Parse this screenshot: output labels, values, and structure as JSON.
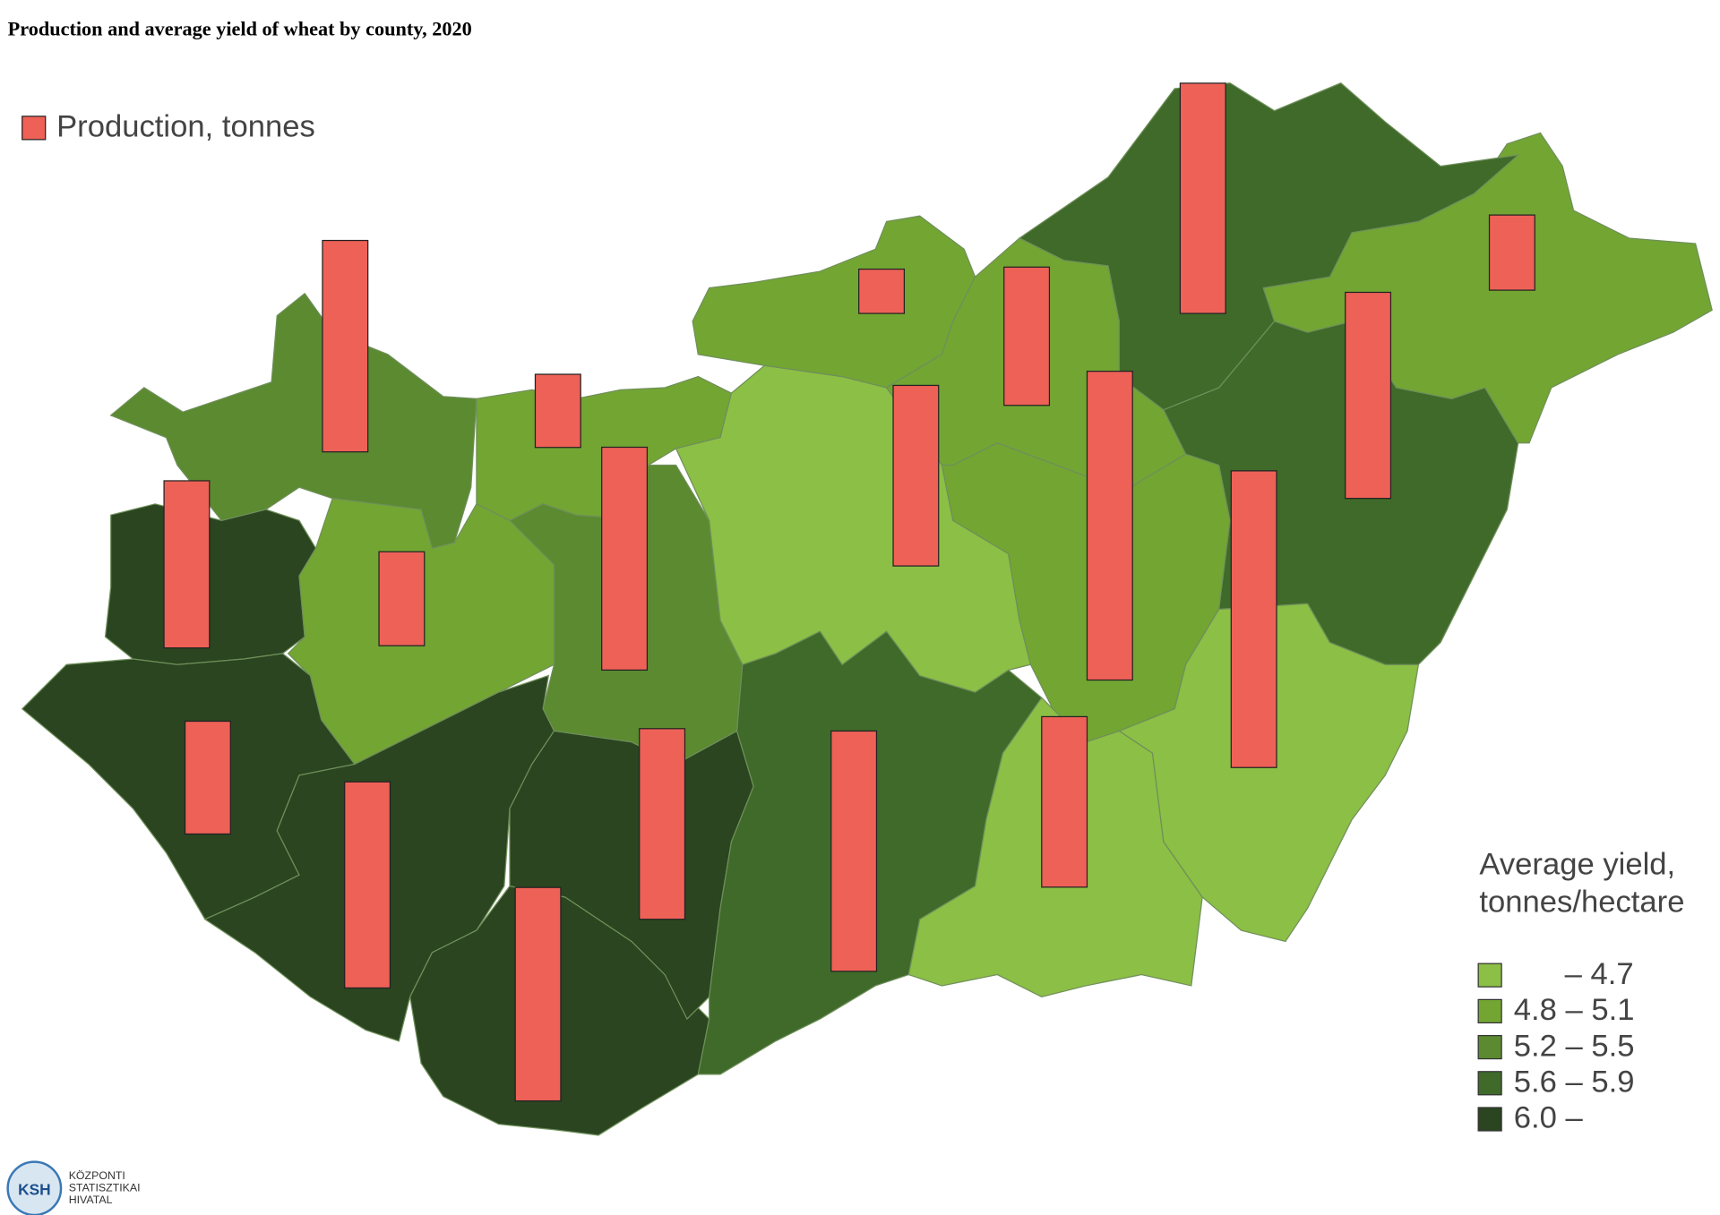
{
  "title": "Production and average yield of wheat by county, 2020",
  "legend": {
    "production_label": "Production, tonnes",
    "yield_title": [
      "Average yield,",
      "tonnes/hectare"
    ],
    "classes": [
      {
        "label": "– 4.7",
        "color": "#8cbf45"
      },
      {
        "label": "4.8 – 5.1",
        "color": "#73a533"
      },
      {
        "label": "5.2 – 5.5",
        "color": "#5b8a30"
      },
      {
        "label": "5.6 – 5.9",
        "color": "#3f6a2a"
      },
      {
        "label": "6.0 –",
        "color": "#2a4520"
      }
    ]
  },
  "bar_color": "#ee6157",
  "counties": [
    {
      "class": 2,
      "production": 315000
    },
    {
      "class": 1,
      "production": 109000
    },
    {
      "class": 4,
      "production": 249000
    },
    {
      "class": 1,
      "production": 140000
    },
    {
      "class": 2,
      "production": 332000
    },
    {
      "class": 4,
      "production": 168000
    },
    {
      "class": 4,
      "production": 307000
    },
    {
      "class": 4,
      "production": 318000
    },
    {
      "class": 4,
      "production": 284000
    },
    {
      "class": 3,
      "production": 358000
    },
    {
      "class": 0,
      "production": 269000
    },
    {
      "class": 1,
      "production": 66000
    },
    {
      "class": 1,
      "production": 206000
    },
    {
      "class": 1,
      "production": 460000
    },
    {
      "class": 0,
      "production": 254000
    },
    {
      "class": 0,
      "production": 442000
    },
    {
      "class": 3,
      "production": 307000
    },
    {
      "class": 1,
      "production": 112000
    },
    {
      "class": 3,
      "production": 343000
    }
  ],
  "logo": {
    "mark": "KSH",
    "lines": [
      "KÖZPONTI",
      "STATISZTIKAI",
      "HIVATAL"
    ]
  }
}
